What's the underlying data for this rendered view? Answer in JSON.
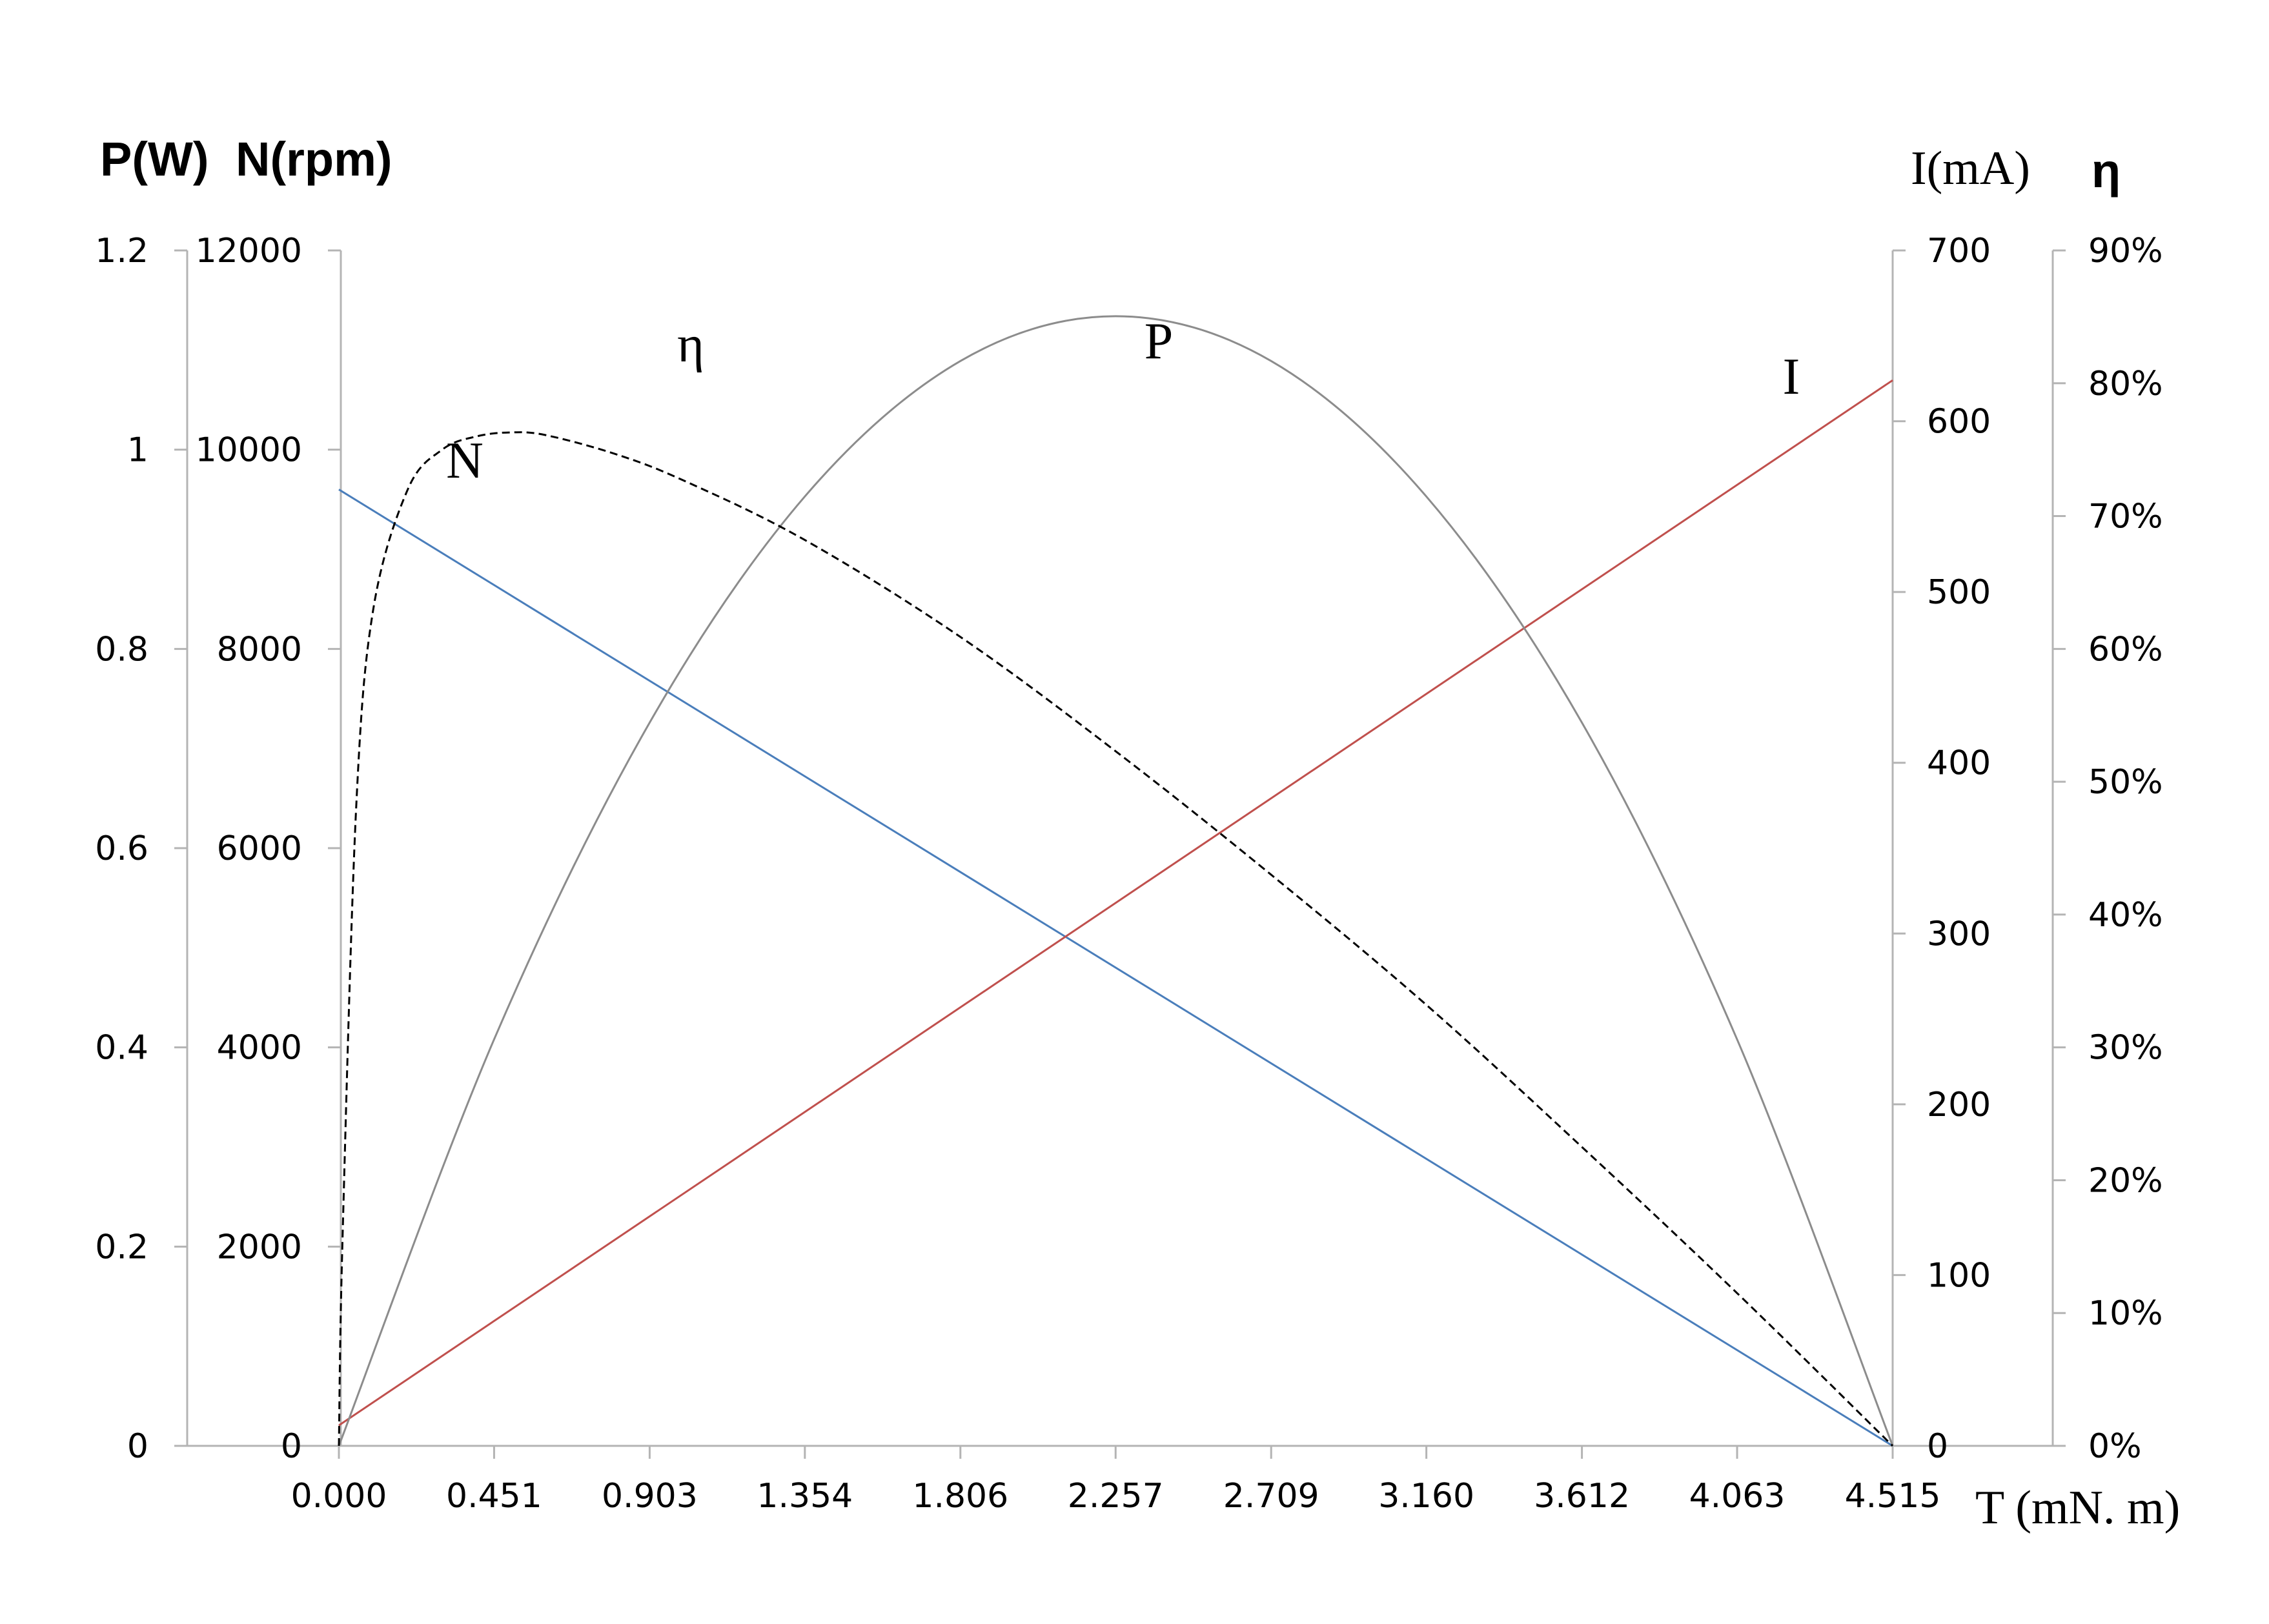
{
  "chart_data": {
    "type": "line",
    "axes": {
      "x": {
        "label": "T (mN. m)",
        "ticks": [
          "0.000",
          "0.451",
          "0.903",
          "1.354",
          "1.806",
          "2.257",
          "2.709",
          "3.160",
          "3.612",
          "4.063",
          "4.515"
        ],
        "range": [
          0,
          4.515
        ]
      },
      "y_power": {
        "label": "P(W)",
        "ticks": [
          "0",
          "0.2",
          "0.4",
          "0.6",
          "0.8",
          "1",
          "1.2"
        ],
        "range": [
          0,
          1.2
        ]
      },
      "y_speed": {
        "label": "N(rpm)",
        "ticks": [
          "0",
          "2000",
          "4000",
          "6000",
          "8000",
          "10000",
          "12000"
        ],
        "range": [
          0,
          12000
        ]
      },
      "y_current": {
        "label": "I(mA)",
        "ticks": [
          "0",
          "100",
          "200",
          "300",
          "400",
          "500",
          "600",
          "700"
        ],
        "range": [
          0,
          700
        ]
      },
      "y_efficiency": {
        "label": "η",
        "ticks": [
          "0%",
          "10%",
          "20%",
          "30%",
          "40%",
          "50%",
          "60%",
          "70%",
          "80%",
          "90%"
        ],
        "range": [
          0,
          90
        ]
      }
    },
    "series": [
      {
        "name": "N",
        "axis": "y_speed",
        "color": "#4a7ebb",
        "style": "solid",
        "x": [
          0,
          4.515
        ],
        "y": [
          9600,
          0
        ]
      },
      {
        "name": "I",
        "axis": "y_current",
        "color": "#c0504d",
        "style": "solid",
        "x": [
          0,
          4.515
        ],
        "y": [
          12,
          624
        ]
      },
      {
        "name": "P",
        "axis": "y_power",
        "color": "#8c8c8c",
        "style": "solid",
        "x": [
          0,
          0.451,
          0.903,
          1.354,
          1.806,
          2.257,
          2.709,
          3.16,
          3.612,
          4.063,
          4.515
        ],
        "y": [
          0,
          0.408,
          0.726,
          0.953,
          1.089,
          1.134,
          1.089,
          0.953,
          0.726,
          0.408,
          0
        ]
      },
      {
        "name": "η",
        "axis": "y_efficiency",
        "color": "#000000",
        "style": "dashed",
        "x": [
          0,
          0.01,
          0.05,
          0.1,
          0.2,
          0.3,
          0.4,
          0.5,
          0.6,
          0.8,
          1.0,
          1.354,
          1.806,
          2.257,
          2.709,
          3.16,
          3.612,
          4.063,
          4.515
        ],
        "y": [
          0,
          15,
          48,
          63,
          72,
          75,
          76,
          76.3,
          76.1,
          74.7,
          72.7,
          68.2,
          60.9,
          52.3,
          43,
          33.2,
          22.5,
          11.5,
          0
        ]
      }
    ],
    "series_labels": [
      "N",
      "I",
      "P",
      "η"
    ]
  }
}
